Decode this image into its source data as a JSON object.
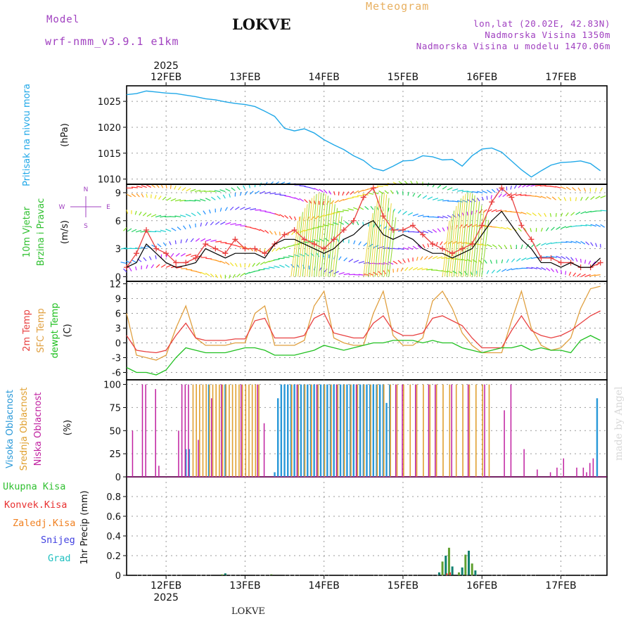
{
  "header": {
    "model_label": "Model",
    "model_name": "wrf-nmm_v3.9.1 e1km",
    "station": "LOKVE",
    "meteogram": "Meteogram",
    "lonlat": "lon,lat (20.02E, 42.83N)",
    "altitude": "Nadmorska Visina 1350m",
    "altitude_model": "Nadmorska Visina u modelu 1470.06m"
  },
  "footer": {
    "station": "LOKVE",
    "madeby": "made by Angel"
  },
  "colors": {
    "pressure": "#20a8e8",
    "wind_speed": "#e84040",
    "wind_gust": "#000000",
    "temp2m": "#e84040",
    "sfc_temp": "#e0a040",
    "dewpt": "#20c020",
    "high_cloud": "#2898d8",
    "mid_cloud": "#e0a030",
    "low_cloud": "#c020a0",
    "precip_total": "#30c030",
    "precip_conv": "#e83030",
    "precip_frozen": "#f08020",
    "snow": "#4040e0",
    "graupel": "#20c0c0"
  },
  "chart_data": [
    {
      "type": "line",
      "id": "pressure",
      "title": "Pritisak na nivou mora",
      "ylabel": "(hPa)",
      "x_ticks_top": [
        "12FEB",
        "13FEB",
        "14FEB",
        "15FEB",
        "16FEB",
        "17FEB"
      ],
      "year_top": "2025",
      "ylim": [
        1009,
        1028
      ],
      "yticks": [
        "1025",
        "1020",
        "1015",
        "1010"
      ],
      "x_hours": [
        0,
        3,
        6,
        9,
        12,
        15,
        18,
        21,
        24,
        27,
        30,
        33,
        36,
        39,
        42,
        45,
        48,
        51,
        54,
        57,
        60,
        63,
        66,
        69,
        72,
        75,
        78,
        81,
        84,
        87,
        90,
        93,
        96,
        99,
        102,
        105,
        108,
        111,
        114,
        117,
        120,
        123,
        126,
        129,
        132,
        135,
        138,
        141,
        144
      ],
      "values": [
        1026.3,
        1026.5,
        1027.0,
        1026.8,
        1026.6,
        1026.5,
        1026.2,
        1025.9,
        1025.5,
        1025.3,
        1024.9,
        1024.6,
        1024.4,
        1024.0,
        1023.1,
        1022.1,
        1019.8,
        1019.3,
        1019.7,
        1018.9,
        1017.6,
        1016.6,
        1015.7,
        1014.5,
        1013.6,
        1012.1,
        1011.6,
        1012.5,
        1013.5,
        1013.6,
        1014.5,
        1014.3,
        1013.7,
        1013.8,
        1012.5,
        1014.5,
        1015.8,
        1016.0,
        1015.2,
        1013.5,
        1011.8,
        1010.4,
        1011.6,
        1012.7,
        1013.2,
        1013.3,
        1013.5,
        1013.0,
        1011.6
      ]
    },
    {
      "type": "line",
      "id": "wind",
      "title": "10m Vjetar Brzina i Pravac",
      "ylabel": "(m/s)",
      "compass": {
        "north": "N",
        "west": "W",
        "east": "E",
        "south": "S"
      },
      "ylim": [
        -0.5,
        9.9
      ],
      "yticks": [
        "9",
        "6",
        "3",
        "0"
      ],
      "series": [
        {
          "name": "",
          "values": [
            1,
            2.5,
            5,
            3,
            2.5,
            1.5,
            1.5,
            2.0,
            3.5,
            3.0,
            2.5,
            4.0,
            3.0,
            3.0,
            2.5,
            3.5,
            4.5,
            5.0,
            4.0,
            3.5,
            3.0,
            4.0,
            5.0,
            6.0,
            8.5,
            9.5,
            6.5,
            5.0,
            5.0,
            5.5,
            4.5,
            3.5,
            3.0,
            2.5,
            3.0,
            3.5,
            5.5,
            8.0,
            9.5,
            8.5,
            5.5,
            4.0,
            2.0,
            2.0,
            1.5,
            1.5,
            1.0,
            1.0,
            1.5
          ]
        },
        {
          "name": "",
          "values": [
            1,
            1.5,
            3.5,
            2.5,
            1.5,
            1.0,
            1.2,
            1.5,
            3.0,
            2.5,
            2.0,
            2.5,
            2.5,
            2.5,
            2.0,
            3.5,
            4.0,
            4.0,
            3.5,
            3.0,
            2.5,
            3.0,
            4.0,
            4.5,
            5.5,
            6.0,
            4.5,
            4.0,
            4.5,
            4.0,
            3.0,
            2.5,
            2.5,
            2.0,
            2.5,
            3.0,
            4.5,
            6.0,
            7.0,
            5.5,
            4.0,
            3.0,
            1.5,
            1.5,
            1.0,
            1.5,
            1.0,
            1.0,
            2.0
          ]
        }
      ]
    },
    {
      "type": "line",
      "id": "temperature",
      "title_lines": [
        "2m Temp",
        "SFC Temp",
        "dewpt Temp"
      ],
      "ylabel": "(C)",
      "ylim": [
        -7.5,
        12.5
      ],
      "yticks": [
        "12",
        "9",
        "6",
        "3",
        "0",
        "-3",
        "-6"
      ],
      "series": [
        {
          "name": "2m Temp",
          "values": [
            1.5,
            -1.5,
            -1.8,
            -2.0,
            -1.5,
            1.5,
            4.0,
            1.0,
            0.5,
            0.5,
            0.5,
            0.8,
            0.8,
            4.5,
            5.0,
            1.0,
            1.0,
            1.0,
            1.5,
            5.0,
            6.0,
            2.0,
            1.5,
            1.0,
            1.0,
            4.0,
            5.5,
            2.5,
            1.5,
            1.5,
            2.0,
            5.0,
            5.5,
            4.5,
            3.5,
            1.0,
            -1.0,
            -1.0,
            -1.0,
            2.5,
            5.5,
            2.5,
            1.5,
            1.0,
            1.5,
            2.5,
            4.0,
            5.5,
            6.5
          ]
        },
        {
          "name": "SFC Temp",
          "values": [
            6.0,
            -2.5,
            -3.0,
            -3.5,
            -2.5,
            3.0,
            7.5,
            1.0,
            -0.5,
            -0.5,
            -0.5,
            0.0,
            0.0,
            6.0,
            7.5,
            -0.5,
            -0.5,
            -0.5,
            0.5,
            7.5,
            10.5,
            1.0,
            0.0,
            -0.5,
            -0.5,
            6.0,
            10.5,
            1.5,
            -0.5,
            -0.5,
            1.0,
            8.5,
            10.5,
            7.0,
            2.0,
            -0.5,
            -2.0,
            -2.0,
            -2.0,
            4.5,
            10.5,
            3.0,
            -0.5,
            -1.5,
            -1.0,
            1.0,
            7.0,
            11.0,
            11.5
          ]
        },
        {
          "name": "dewpt Temp",
          "values": [
            -5.0,
            -6.0,
            -6.0,
            -6.5,
            -5.5,
            -3.0,
            -1.0,
            -1.5,
            -2.0,
            -2.0,
            -2.0,
            -1.5,
            -1.0,
            -1.0,
            -1.5,
            -2.5,
            -2.5,
            -2.5,
            -2.0,
            -1.5,
            -0.5,
            -1.0,
            -1.5,
            -1.0,
            -0.5,
            0.0,
            0.0,
            0.5,
            0.5,
            0.5,
            0.0,
            0.5,
            0.0,
            0.0,
            -1.0,
            -1.5,
            -2.0,
            -1.5,
            -1.0,
            -1.0,
            -0.5,
            -1.5,
            -1.0,
            -1.5,
            -1.5,
            -2.0,
            0.5,
            1.5,
            0.5
          ]
        }
      ]
    },
    {
      "type": "bar",
      "id": "clouds",
      "title_lines": [
        "Visoka Oblacnost",
        "Srednja Oblacnost",
        "Niska Oblacnost"
      ],
      "ylabel": "(%)",
      "ylim": [
        0,
        105
      ],
      "yticks": [
        "100",
        "75",
        "50",
        "25",
        "0"
      ],
      "series": [
        {
          "name": "Visoka Oblacnost",
          "hours": [
            18,
            19,
            25,
            30,
            45,
            46,
            47,
            48,
            49,
            50,
            51,
            52,
            53,
            54,
            55,
            56,
            57,
            58,
            59,
            60,
            61,
            62,
            63,
            64,
            65,
            66,
            67,
            68,
            69,
            70,
            71,
            72,
            73,
            74,
            75,
            76,
            77,
            78,
            79,
            80,
            143
          ],
          "values": [
            30,
            30,
            100,
            100,
            5,
            85,
            100,
            100,
            100,
            100,
            100,
            100,
            100,
            100,
            100,
            100,
            100,
            100,
            100,
            100,
            100,
            100,
            100,
            100,
            100,
            100,
            100,
            100,
            100,
            100,
            100,
            100,
            100,
            100,
            100,
            100,
            100,
            100,
            80,
            100,
            85
          ]
        },
        {
          "name": "Srednja Oblacnost",
          "hours": [
            20,
            21,
            22,
            23,
            24,
            25,
            26,
            27,
            28,
            29,
            30,
            31,
            32,
            33,
            34,
            35,
            36,
            37,
            38,
            39,
            40,
            50,
            52,
            54,
            56,
            58,
            60,
            62,
            64,
            66,
            68,
            70,
            72,
            74,
            76,
            78,
            80,
            82,
            84,
            86,
            88,
            90,
            92,
            94,
            96,
            98,
            100,
            102,
            104,
            106,
            108,
            110
          ],
          "values": [
            100,
            100,
            100,
            100,
            100,
            100,
            100,
            100,
            100,
            100,
            100,
            100,
            100,
            100,
            100,
            100,
            100,
            100,
            100,
            100,
            100,
            100,
            100,
            100,
            100,
            100,
            100,
            100,
            100,
            100,
            100,
            100,
            100,
            100,
            100,
            100,
            100,
            100,
            100,
            100,
            100,
            100,
            100,
            100,
            100,
            100,
            100,
            100,
            100,
            100,
            100,
            100
          ]
        },
        {
          "name": "Niska Oblacnost",
          "hours": [
            2,
            5,
            6,
            9,
            10,
            16,
            17,
            18,
            19,
            22,
            26,
            29,
            35,
            40,
            42,
            52,
            58,
            64,
            70,
            82,
            84,
            88,
            92,
            94,
            99,
            104,
            109,
            115,
            117,
            121,
            125,
            129,
            131,
            133,
            137,
            139,
            140,
            141,
            142
          ],
          "values": [
            50,
            100,
            100,
            95,
            12,
            50,
            100,
            100,
            100,
            40,
            85,
            100,
            100,
            100,
            58,
            100,
            100,
            100,
            100,
            100,
            100,
            100,
            100,
            100,
            100,
            100,
            100,
            72,
            100,
            30,
            8,
            5,
            10,
            20,
            10,
            10,
            5,
            15,
            20
          ]
        }
      ]
    },
    {
      "type": "bar",
      "id": "precip",
      "legend": [
        "Ukupna Kisa",
        "Konvek.Kisa",
        "Zaledj.Kisa",
        "Snijeg",
        "Grad"
      ],
      "ylabel": "1hr Precip (mm)",
      "x_ticks_bottom": [
        "12FEB",
        "13FEB",
        "14FEB",
        "15FEB",
        "16FEB",
        "17FEB"
      ],
      "year_bottom": "2025",
      "ylim": [
        0,
        1.0
      ],
      "yticks": [
        "0.8",
        "0.6",
        "0.4",
        "0.2",
        "0"
      ],
      "series": [
        {
          "name": "Ukupna Kisa",
          "hours": [
            29,
            30,
            44,
            95,
            96,
            97,
            98,
            99,
            101,
            102,
            103,
            104,
            105,
            106
          ],
          "values": [
            0.01,
            0.02,
            0.01,
            0.03,
            0.14,
            0.2,
            0.28,
            0.09,
            0.03,
            0.08,
            0.21,
            0.25,
            0.12,
            0.05
          ]
        },
        {
          "name": "Konvek.Kisa",
          "hours": [
            97,
            98
          ],
          "values": [
            0.02,
            0.03
          ]
        }
      ]
    }
  ]
}
